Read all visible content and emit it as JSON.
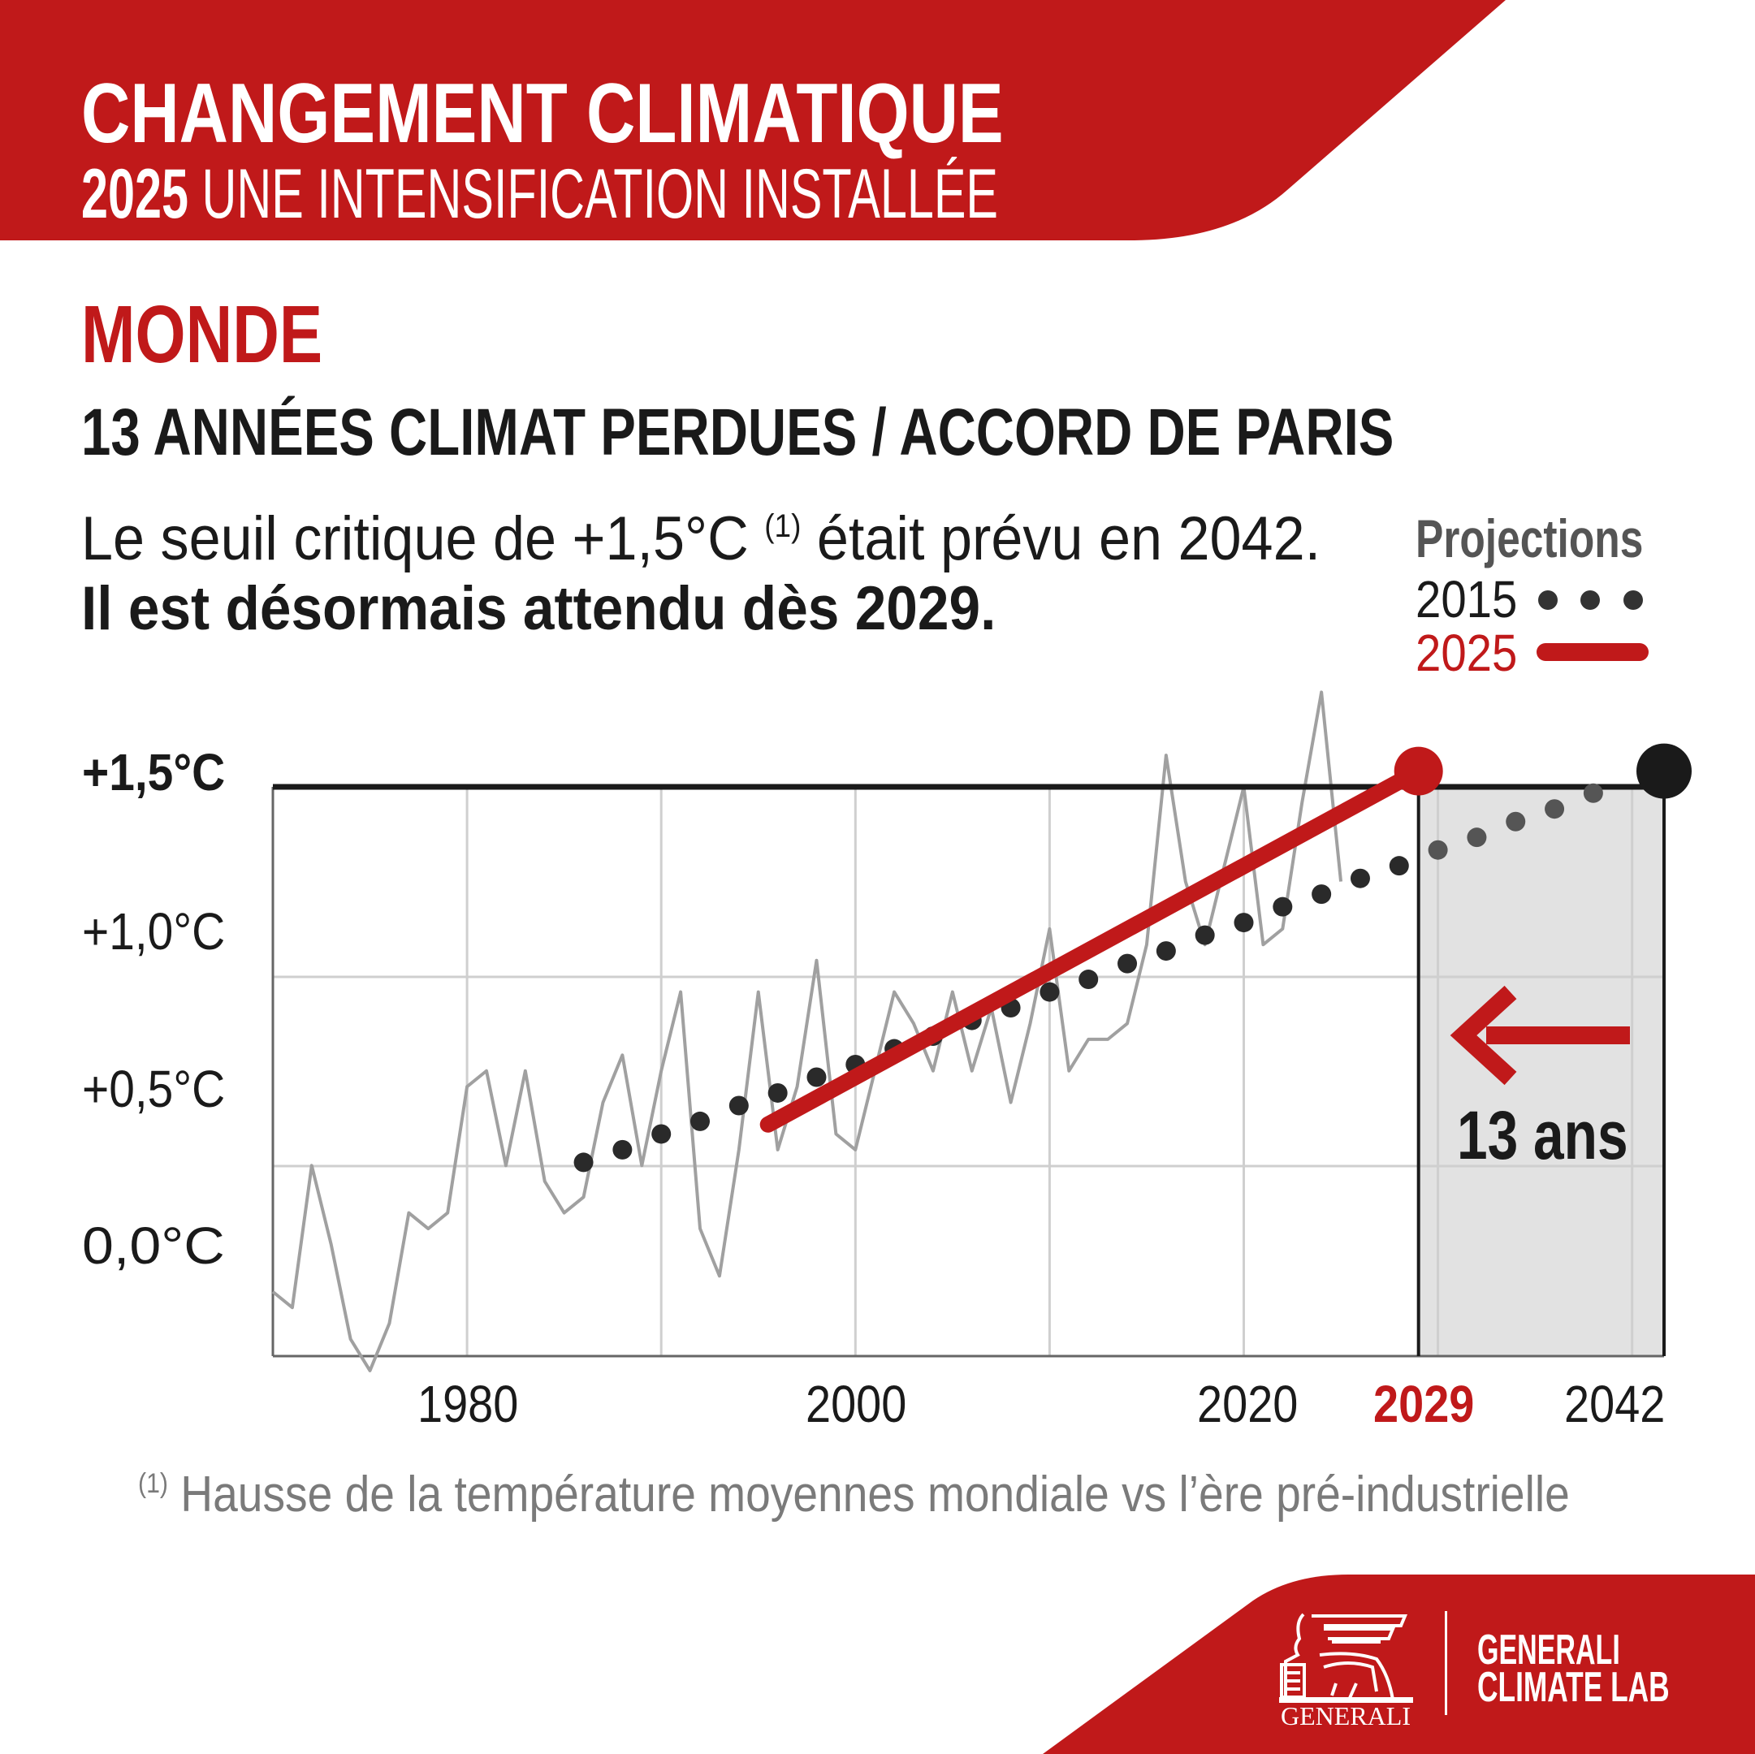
{
  "header": {
    "title": "CHANGEMENT CLIMATIQUE",
    "subtitle_year": "2025",
    "subtitle_rest": " UNE INTENSIFICATION INSTALLÉE"
  },
  "region": "MONDE",
  "heading": "13 ANNÉES CLIMAT PERDUES / ACCORD DE PARIS",
  "lead": {
    "line1_a": "Le seuil critique de +1,5°C ",
    "line1_note": "(1)",
    "line1_b": " était prévu en 2042.",
    "line2": "Il est désormais attendu dès 2029."
  },
  "legend": {
    "title": "Projections",
    "items": [
      {
        "label": "2015",
        "style": "dotted",
        "color": "#333333"
      },
      {
        "label": "2025",
        "style": "solid",
        "color": "#c0191a"
      }
    ]
  },
  "annotation": "13 ans",
  "footnote": {
    "mark": "(1)",
    "text": " Hausse de la température moyennes mondiale vs l’ère pré-industrielle"
  },
  "brand": {
    "logo_text": "GENERALI",
    "line1": "GENERALI",
    "line2": "CLIMATE LAB"
  },
  "colors": {
    "accent": "#c0191a",
    "dark": "#1a1a1a",
    "series": "#a0a0a0",
    "shade": "#e2e2e2"
  },
  "chart_data": {
    "type": "line",
    "ylabel": "",
    "xlabel": "",
    "xlim": [
      1970,
      2043
    ],
    "ylim": [
      -0.3,
      1.5
    ],
    "y_ticks": [
      {
        "value": 1.5,
        "label": "+1,5°C",
        "bold": true
      },
      {
        "value": 1.0,
        "label": "+1,0°C"
      },
      {
        "value": 0.5,
        "label": "+0,5°C"
      },
      {
        "value": 0.0,
        "label": "0,0°C"
      }
    ],
    "x_ticks": [
      {
        "value": 1980,
        "label": "1980"
      },
      {
        "value": 2000,
        "label": "2000"
      },
      {
        "value": 2020,
        "label": "2020"
      },
      {
        "value": 2029,
        "label": "2029",
        "highlight": true
      },
      {
        "value": 2042,
        "label": "2042"
      }
    ],
    "threshold": 1.5,
    "shaded_range": [
      2029,
      2042
    ],
    "observed": {
      "x": [
        1970,
        1971,
        1972,
        1973,
        1974,
        1975,
        1976,
        1977,
        1978,
        1979,
        1980,
        1981,
        1982,
        1983,
        1984,
        1985,
        1986,
        1987,
        1988,
        1989,
        1990,
        1991,
        1992,
        1993,
        1994,
        1995,
        1996,
        1997,
        1998,
        1999,
        2000,
        2001,
        2002,
        2003,
        2004,
        2005,
        2006,
        2007,
        2008,
        2009,
        2010,
        2011,
        2012,
        2013,
        2014,
        2015,
        2016,
        2017,
        2018,
        2019,
        2020,
        2021,
        2022,
        2023,
        2024,
        2025
      ],
      "y": [
        -0.1,
        -0.15,
        0.3,
        0.05,
        -0.25,
        -0.35,
        -0.2,
        0.15,
        0.1,
        0.15,
        0.55,
        0.6,
        0.3,
        0.6,
        0.25,
        0.15,
        0.2,
        0.5,
        0.65,
        0.3,
        0.6,
        0.85,
        0.1,
        -0.05,
        0.35,
        0.85,
        0.35,
        0.55,
        0.95,
        0.4,
        0.35,
        0.6,
        0.85,
        0.75,
        0.6,
        0.85,
        0.6,
        0.8,
        0.5,
        0.75,
        1.05,
        0.6,
        0.7,
        0.7,
        0.75,
        1.0,
        1.6,
        1.2,
        1.0,
        1.25,
        1.5,
        1.0,
        1.05,
        1.45,
        1.8,
        1.2
      ]
    },
    "series": [
      {
        "name": "2015",
        "style": "dotted",
        "x": [
          1986,
          1988,
          1990,
          1992,
          1994,
          1996,
          1998,
          2000,
          2002,
          2004,
          2006,
          2008,
          2010,
          2012,
          2014,
          2016,
          2018,
          2020,
          2022,
          2024,
          2026,
          2028,
          2030,
          2032,
          2034,
          2036,
          2038
        ],
        "y": [
          0.31,
          0.35,
          0.4,
          0.44,
          0.49,
          0.53,
          0.58,
          0.62,
          0.67,
          0.71,
          0.76,
          0.8,
          0.85,
          0.89,
          0.94,
          0.98,
          1.03,
          1.07,
          1.12,
          1.16,
          1.21,
          1.25,
          1.3,
          1.34,
          1.39,
          1.43,
          1.48
        ],
        "endpoint": [
          2042,
          1.55
        ]
      },
      {
        "name": "2025",
        "style": "solid",
        "x": [
          1995.5,
          2029
        ],
        "y": [
          0.43,
          1.55
        ]
      }
    ]
  }
}
